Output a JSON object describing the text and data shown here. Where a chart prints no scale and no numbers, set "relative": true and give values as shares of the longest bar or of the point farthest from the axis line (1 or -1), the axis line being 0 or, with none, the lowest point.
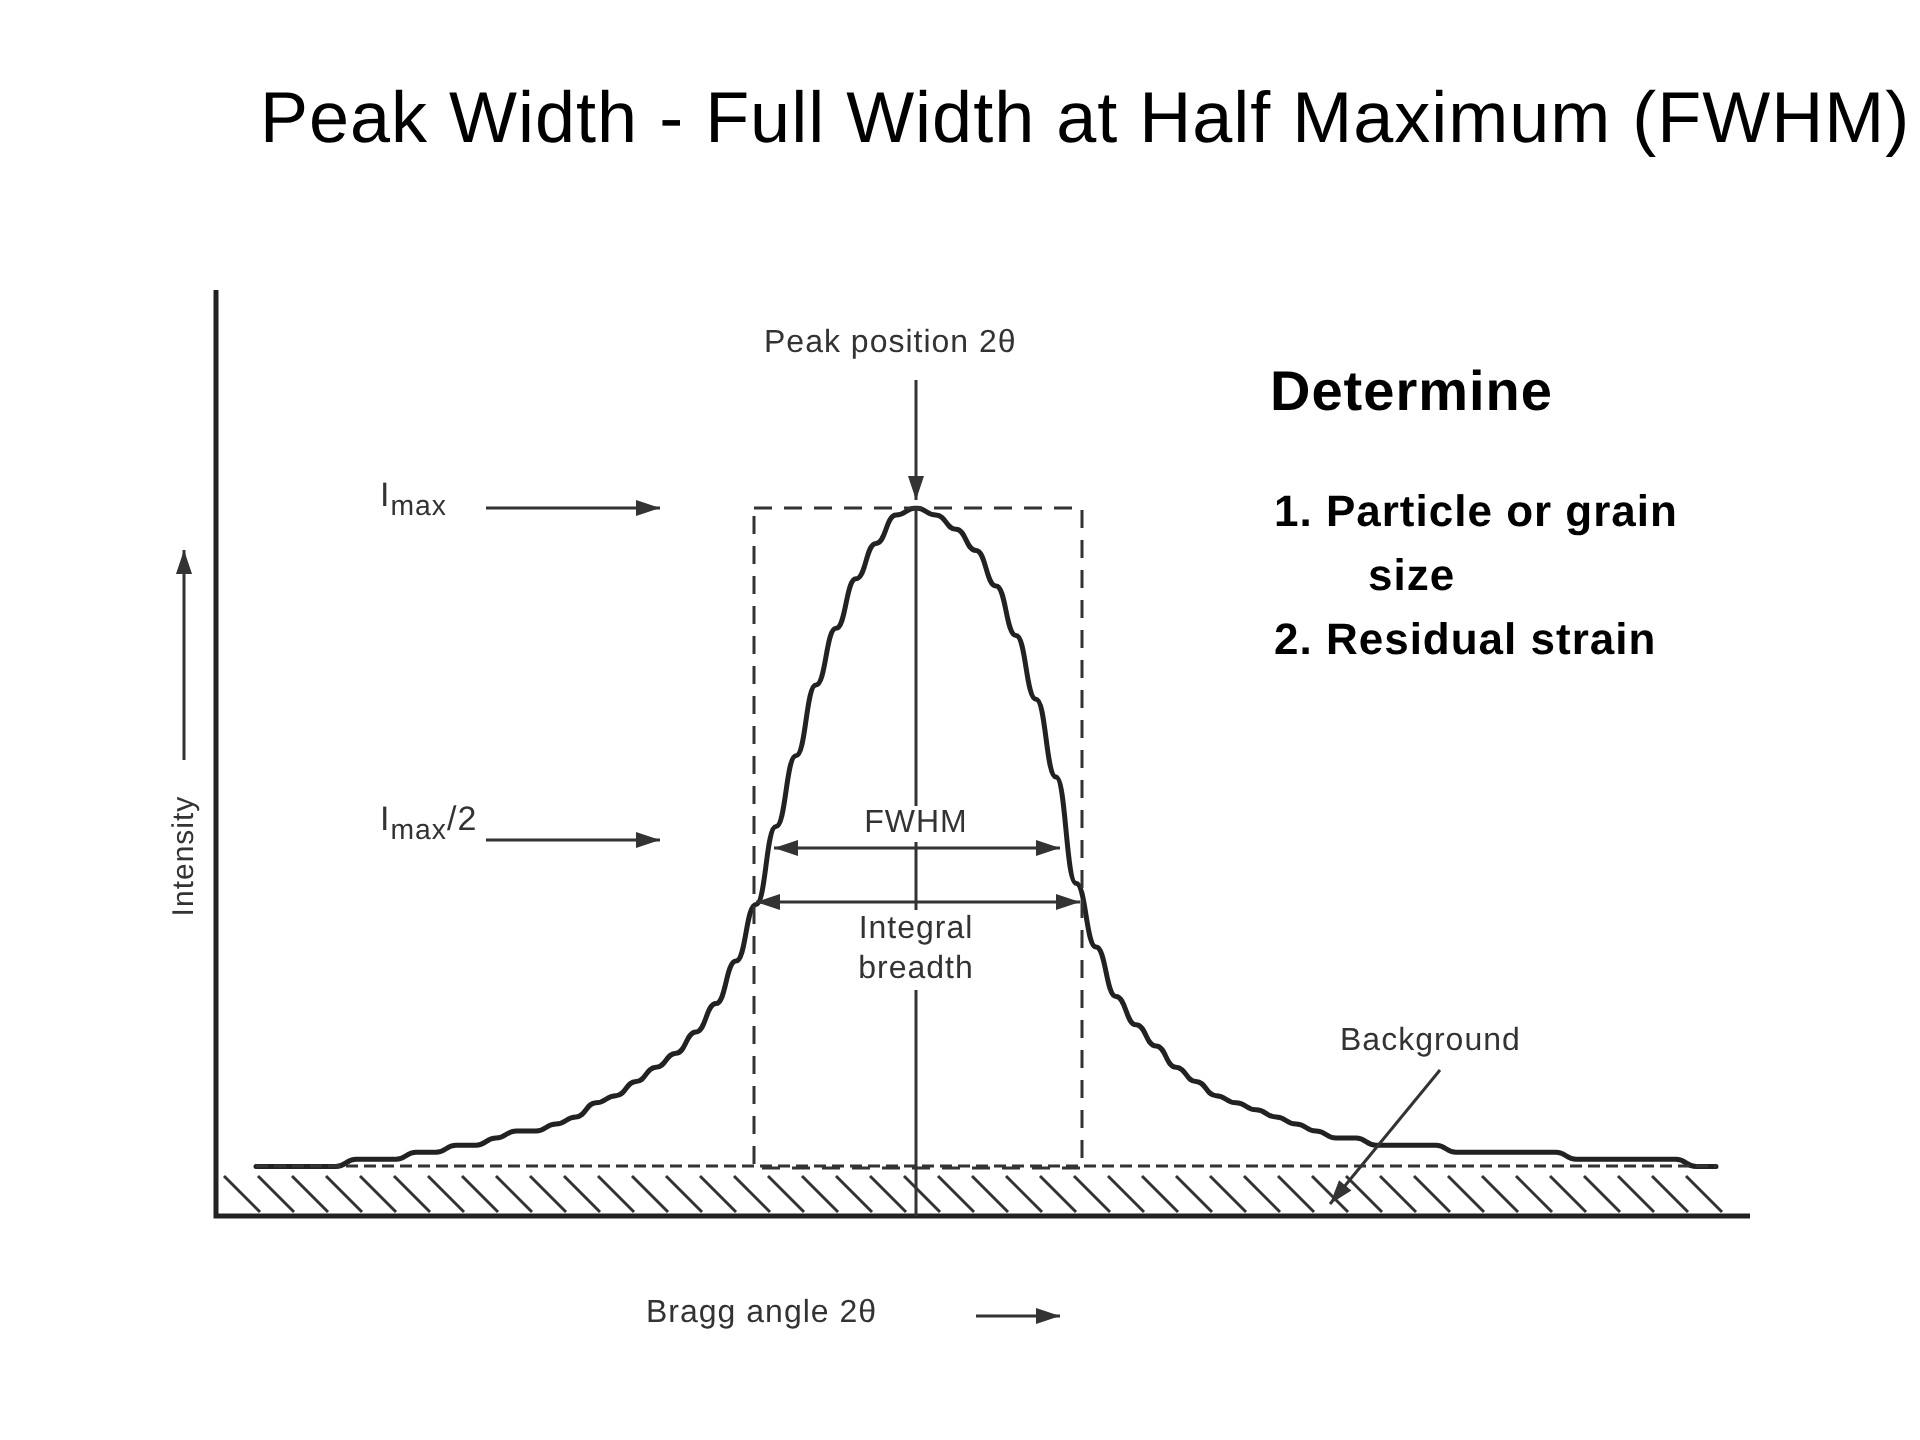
{
  "chart_data": {
    "type": "line",
    "title": "Peak Width - Full Width at Half Maximum (FWHM)",
    "xlabel": "Bragg angle 2θ",
    "ylabel": "Intensity",
    "relative": true,
    "marker": "none",
    "line_style": "solid",
    "categories": [
      null,
      null,
      null,
      null,
      null,
      null,
      null,
      null,
      null,
      null,
      null,
      null,
      null,
      null,
      null,
      null,
      null,
      null,
      null,
      null,
      null,
      null,
      null,
      null,
      null,
      null,
      null,
      null,
      null,
      null,
      null,
      null,
      null,
      null,
      null,
      null,
      null,
      null,
      null,
      null,
      null,
      null,
      null,
      null,
      null,
      null,
      null,
      null,
      null,
      null,
      null,
      null,
      null,
      null,
      null,
      null,
      null,
      null,
      null,
      null,
      null,
      null,
      null,
      null,
      null,
      null,
      null,
      null,
      null,
      null,
      null,
      null,
      null,
      null
    ],
    "series": [
      {
        "color": "#222222",
        "values": [
          0.07,
          0.07,
          0.07,
          0.07,
          0.07,
          0.08,
          0.08,
          0.08,
          0.09,
          0.09,
          0.1,
          0.1,
          0.11,
          0.12,
          0.12,
          0.13,
          0.14,
          0.16,
          0.17,
          0.19,
          0.21,
          0.23,
          0.26,
          0.3,
          0.36,
          0.44,
          0.55,
          0.65,
          0.75,
          0.83,
          0.9,
          0.95,
          0.99,
          1,
          0.99,
          0.97,
          0.94,
          0.89,
          0.82,
          0.73,
          0.62,
          0.47,
          0.38,
          0.31,
          0.27,
          0.24,
          0.21,
          0.19,
          0.17,
          0.16,
          0.15,
          0.14,
          0.13,
          0.12,
          0.11,
          0.11,
          0.1,
          0.1,
          0.1,
          0.1,
          0.09,
          0.09,
          0.09,
          0.09,
          0.09,
          0.09,
          0.08,
          0.08,
          0.08,
          0.08,
          0.08,
          0.08,
          0.07,
          0.07
        ]
      }
    ],
    "ref_lines": [
      {
        "axis": "y",
        "value": 0.07,
        "line_style": "dashed",
        "color": "#333333"
      }
    ],
    "annotations": [
      "Peak position 2θ",
      "I$_{max}$",
      "I$_{max}$/2",
      "FWHM",
      "Integral breadth",
      "Background",
      "Determine",
      "1. Particle or grain size",
      "2. Residual strain"
    ]
  }
}
